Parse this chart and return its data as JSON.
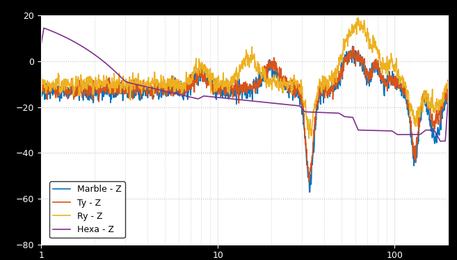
{
  "title": "",
  "xlabel": "",
  "ylabel": "",
  "legend_entries": [
    "Marble - Z",
    "Ty - Z",
    "Ry - Z",
    "Hexa - Z"
  ],
  "line_colors": [
    "#0072BD",
    "#D95319",
    "#EDB120",
    "#7E2F8E"
  ],
  "line_width": 1.2,
  "plot_bg": "#ffffff",
  "fig_bg": "#000000",
  "grid_color": "#c0c0c0",
  "xlim": [
    1,
    200
  ],
  "ylim": [
    -80,
    20
  ],
  "yticks": [
    -80,
    -60,
    -40,
    -20,
    0,
    20
  ]
}
